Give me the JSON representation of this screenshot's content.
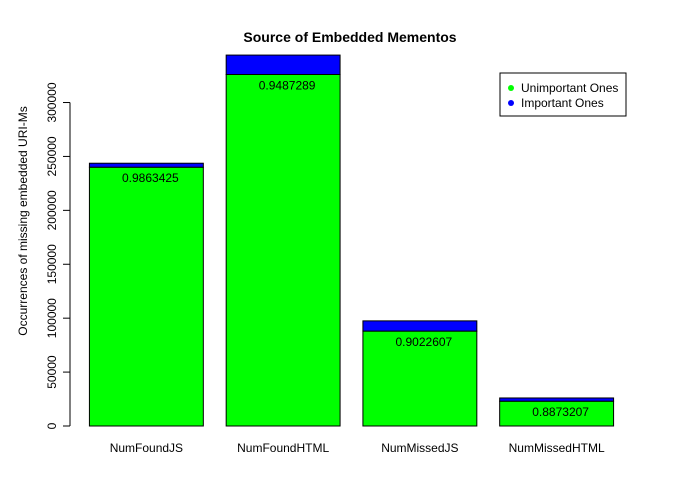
{
  "chart_data": {
    "type": "bar",
    "title": "Source of Embedded Mementos",
    "xlabel": "",
    "ylabel": "Occurrences of missing embedded URI-Ms",
    "categories": [
      "NumFoundJS",
      "NumFoundHTML",
      "NumMissedJS",
      "NumMissedHTML"
    ],
    "stacked": true,
    "series": [
      {
        "name": "Unimportant Ones",
        "color": "#00ff00",
        "values": [
          240000,
          326000,
          88000,
          23000
        ]
      },
      {
        "name": "Important Ones",
        "color": "#0000ff",
        "values": [
          3700,
          18000,
          9500,
          3000
        ]
      }
    ],
    "bar_labels": [
      "0.9863425",
      "0.9487289",
      "0.9022607",
      "0.8873207"
    ],
    "ylim": [
      0,
      345000
    ],
    "yticks": [
      0,
      50000,
      100000,
      150000,
      200000,
      250000,
      300000
    ],
    "ytick_labels": [
      "0",
      "50000",
      "100000",
      "150000",
      "200000",
      "250000",
      "300000"
    ],
    "legend": {
      "placement": "top-right",
      "entries": [
        "Unimportant Ones",
        "Important Ones"
      ]
    },
    "grid": false
  }
}
